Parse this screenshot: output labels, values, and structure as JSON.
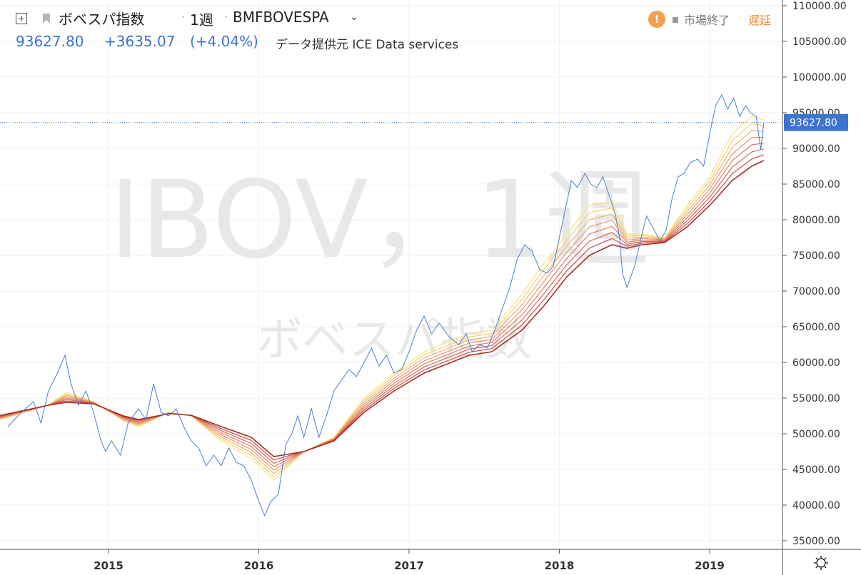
{
  "header": {
    "symbol_name": "ボベスパ指数",
    "interval": "1週",
    "ticker": "BMFBOVESPA",
    "price": "93627.80",
    "change": "+3635.07",
    "change_pct": "(+4.04%)",
    "provider": "データ提供元 ICE Data services",
    "market_status": "市場終了",
    "delay_label": "遅延",
    "warning_glyph": "!"
  },
  "watermark": {
    "line1": "IBOV，1週",
    "line2": "ボベスパ指数"
  },
  "colors": {
    "price_line": "#4a7fd0",
    "accent": "#3d74cf",
    "delay": "#e8883a",
    "ribbon": [
      "#f7e57a",
      "#f5cf76",
      "#f0b271",
      "#eb966b",
      "#e37d64",
      "#d8655a",
      "#c74c46",
      "#a62e1f"
    ]
  },
  "chart_data": {
    "type": "line",
    "x_unit": "year",
    "x_ticks": [
      "2015",
      "2016",
      "2017",
      "2018",
      "2019"
    ],
    "y_ticks": [
      "110000.00",
      "105000.00",
      "100000.00",
      "95000.00",
      "90000.00",
      "85000.00",
      "80000.00",
      "75000.00",
      "70000.00",
      "65000.00",
      "60000.00",
      "55000.00",
      "50000.00",
      "45000.00",
      "40000.00",
      "35000.00"
    ],
    "last_price_label": "93627.80",
    "last_price": 93627.8,
    "price_series": [
      [
        2014.33,
        51000
      ],
      [
        2014.42,
        53000
      ],
      [
        2014.5,
        54500
      ],
      [
        2014.55,
        51500
      ],
      [
        2014.6,
        56000
      ],
      [
        2014.66,
        58500
      ],
      [
        2014.71,
        61000
      ],
      [
        2014.75,
        57000
      ],
      [
        2014.8,
        54000
      ],
      [
        2014.85,
        56000
      ],
      [
        2014.9,
        53000
      ],
      [
        2014.95,
        49000
      ],
      [
        2014.98,
        47500
      ],
      [
        2015.02,
        49000
      ],
      [
        2015.08,
        47000
      ],
      [
        2015.13,
        51500
      ],
      [
        2015.2,
        53500
      ],
      [
        2015.25,
        52000
      ],
      [
        2015.3,
        57000
      ],
      [
        2015.35,
        53000
      ],
      [
        2015.4,
        52500
      ],
      [
        2015.45,
        53500
      ],
      [
        2015.5,
        51000
      ],
      [
        2015.55,
        49000
      ],
      [
        2015.6,
        48000
      ],
      [
        2015.65,
        45500
      ],
      [
        2015.7,
        47000
      ],
      [
        2015.75,
        45500
      ],
      [
        2015.8,
        48000
      ],
      [
        2015.85,
        46000
      ],
      [
        2015.9,
        45500
      ],
      [
        2015.95,
        43500
      ],
      [
        2016.0,
        40500
      ],
      [
        2016.04,
        38500
      ],
      [
        2016.08,
        40500
      ],
      [
        2016.13,
        41500
      ],
      [
        2016.18,
        48500
      ],
      [
        2016.22,
        50000
      ],
      [
        2016.26,
        52500
      ],
      [
        2016.3,
        49500
      ],
      [
        2016.35,
        53500
      ],
      [
        2016.4,
        49500
      ],
      [
        2016.45,
        52500
      ],
      [
        2016.5,
        56000
      ],
      [
        2016.55,
        57500
      ],
      [
        2016.6,
        59000
      ],
      [
        2016.65,
        58000
      ],
      [
        2016.7,
        60000
      ],
      [
        2016.75,
        62000
      ],
      [
        2016.8,
        59500
      ],
      [
        2016.85,
        61000
      ],
      [
        2016.9,
        58500
      ],
      [
        2016.95,
        59000
      ],
      [
        2017.0,
        61500
      ],
      [
        2017.05,
        64500
      ],
      [
        2017.1,
        66500
      ],
      [
        2017.15,
        64000
      ],
      [
        2017.2,
        65500
      ],
      [
        2017.27,
        63500
      ],
      [
        2017.33,
        62500
      ],
      [
        2017.38,
        64000
      ],
      [
        2017.42,
        61500
      ],
      [
        2017.47,
        62500
      ],
      [
        2017.52,
        62000
      ],
      [
        2017.57,
        64500
      ],
      [
        2017.62,
        67500
      ],
      [
        2017.67,
        70500
      ],
      [
        2017.72,
        74500
      ],
      [
        2017.77,
        76500
      ],
      [
        2017.82,
        75500
      ],
      [
        2017.87,
        73000
      ],
      [
        2017.92,
        72500
      ],
      [
        2017.96,
        73500
      ],
      [
        2018.0,
        77500
      ],
      [
        2018.04,
        81500
      ],
      [
        2018.08,
        85500
      ],
      [
        2018.12,
        84500
      ],
      [
        2018.17,
        86500
      ],
      [
        2018.21,
        85000
      ],
      [
        2018.25,
        84500
      ],
      [
        2018.29,
        86000
      ],
      [
        2018.33,
        83500
      ],
      [
        2018.37,
        81000
      ],
      [
        2018.4,
        77500
      ],
      [
        2018.42,
        72500
      ],
      [
        2018.45,
        70500
      ],
      [
        2018.5,
        73500
      ],
      [
        2018.55,
        78000
      ],
      [
        2018.58,
        80500
      ],
      [
        2018.62,
        79000
      ],
      [
        2018.67,
        77000
      ],
      [
        2018.71,
        78500
      ],
      [
        2018.75,
        83000
      ],
      [
        2018.79,
        86000
      ],
      [
        2018.83,
        86500
      ],
      [
        2018.87,
        88000
      ],
      [
        2018.92,
        88500
      ],
      [
        2018.96,
        87500
      ],
      [
        2019.0,
        92000
      ],
      [
        2019.04,
        96000
      ],
      [
        2019.08,
        97500
      ],
      [
        2019.12,
        95500
      ],
      [
        2019.16,
        97000
      ],
      [
        2019.2,
        94500
      ],
      [
        2019.24,
        96000
      ],
      [
        2019.27,
        95000
      ],
      [
        2019.31,
        94500
      ],
      [
        2019.34,
        89800
      ],
      [
        2019.36,
        93627.8
      ]
    ],
    "ribbon_fast": [
      [
        2014.0,
        50200
      ],
      [
        2014.6,
        54000
      ],
      [
        2014.72,
        55800
      ],
      [
        2014.9,
        54500
      ],
      [
        2015.1,
        51800
      ],
      [
        2015.2,
        51000
      ],
      [
        2015.4,
        53000
      ],
      [
        2015.55,
        52500
      ],
      [
        2015.75,
        49000
      ],
      [
        2015.95,
        46500
      ],
      [
        2016.1,
        43500
      ],
      [
        2016.3,
        47500
      ],
      [
        2016.5,
        49500
      ],
      [
        2016.7,
        55000
      ],
      [
        2016.9,
        58500
      ],
      [
        2017.1,
        61500
      ],
      [
        2017.4,
        64000
      ],
      [
        2017.55,
        64500
      ],
      [
        2017.75,
        69500
      ],
      [
        2017.9,
        74000
      ],
      [
        2018.05,
        78000
      ],
      [
        2018.2,
        82000
      ],
      [
        2018.35,
        82500
      ],
      [
        2018.45,
        78000
      ],
      [
        2018.55,
        78000
      ],
      [
        2018.7,
        77500
      ],
      [
        2018.85,
        82000
      ],
      [
        2019.0,
        86000
      ],
      [
        2019.15,
        92000
      ],
      [
        2019.28,
        94500
      ],
      [
        2019.36,
        94000
      ]
    ],
    "ribbon_slow": [
      [
        2014.0,
        51300
      ],
      [
        2014.6,
        54000
      ],
      [
        2014.72,
        54400
      ],
      [
        2014.9,
        54200
      ],
      [
        2015.1,
        52500
      ],
      [
        2015.2,
        52000
      ],
      [
        2015.4,
        52800
      ],
      [
        2015.55,
        52600
      ],
      [
        2015.75,
        51000
      ],
      [
        2015.95,
        49500
      ],
      [
        2016.1,
        46800
      ],
      [
        2016.3,
        47500
      ],
      [
        2016.5,
        49000
      ],
      [
        2016.7,
        53000
      ],
      [
        2016.9,
        56000
      ],
      [
        2017.1,
        58500
      ],
      [
        2017.4,
        61000
      ],
      [
        2017.55,
        61500
      ],
      [
        2017.75,
        64500
      ],
      [
        2017.9,
        68000
      ],
      [
        2018.05,
        72000
      ],
      [
        2018.2,
        75000
      ],
      [
        2018.35,
        76500
      ],
      [
        2018.45,
        76000
      ],
      [
        2018.55,
        76500
      ],
      [
        2018.7,
        76800
      ],
      [
        2018.85,
        79000
      ],
      [
        2019.0,
        82000
      ],
      [
        2019.15,
        85500
      ],
      [
        2019.28,
        87500
      ],
      [
        2019.36,
        88300
      ]
    ]
  }
}
